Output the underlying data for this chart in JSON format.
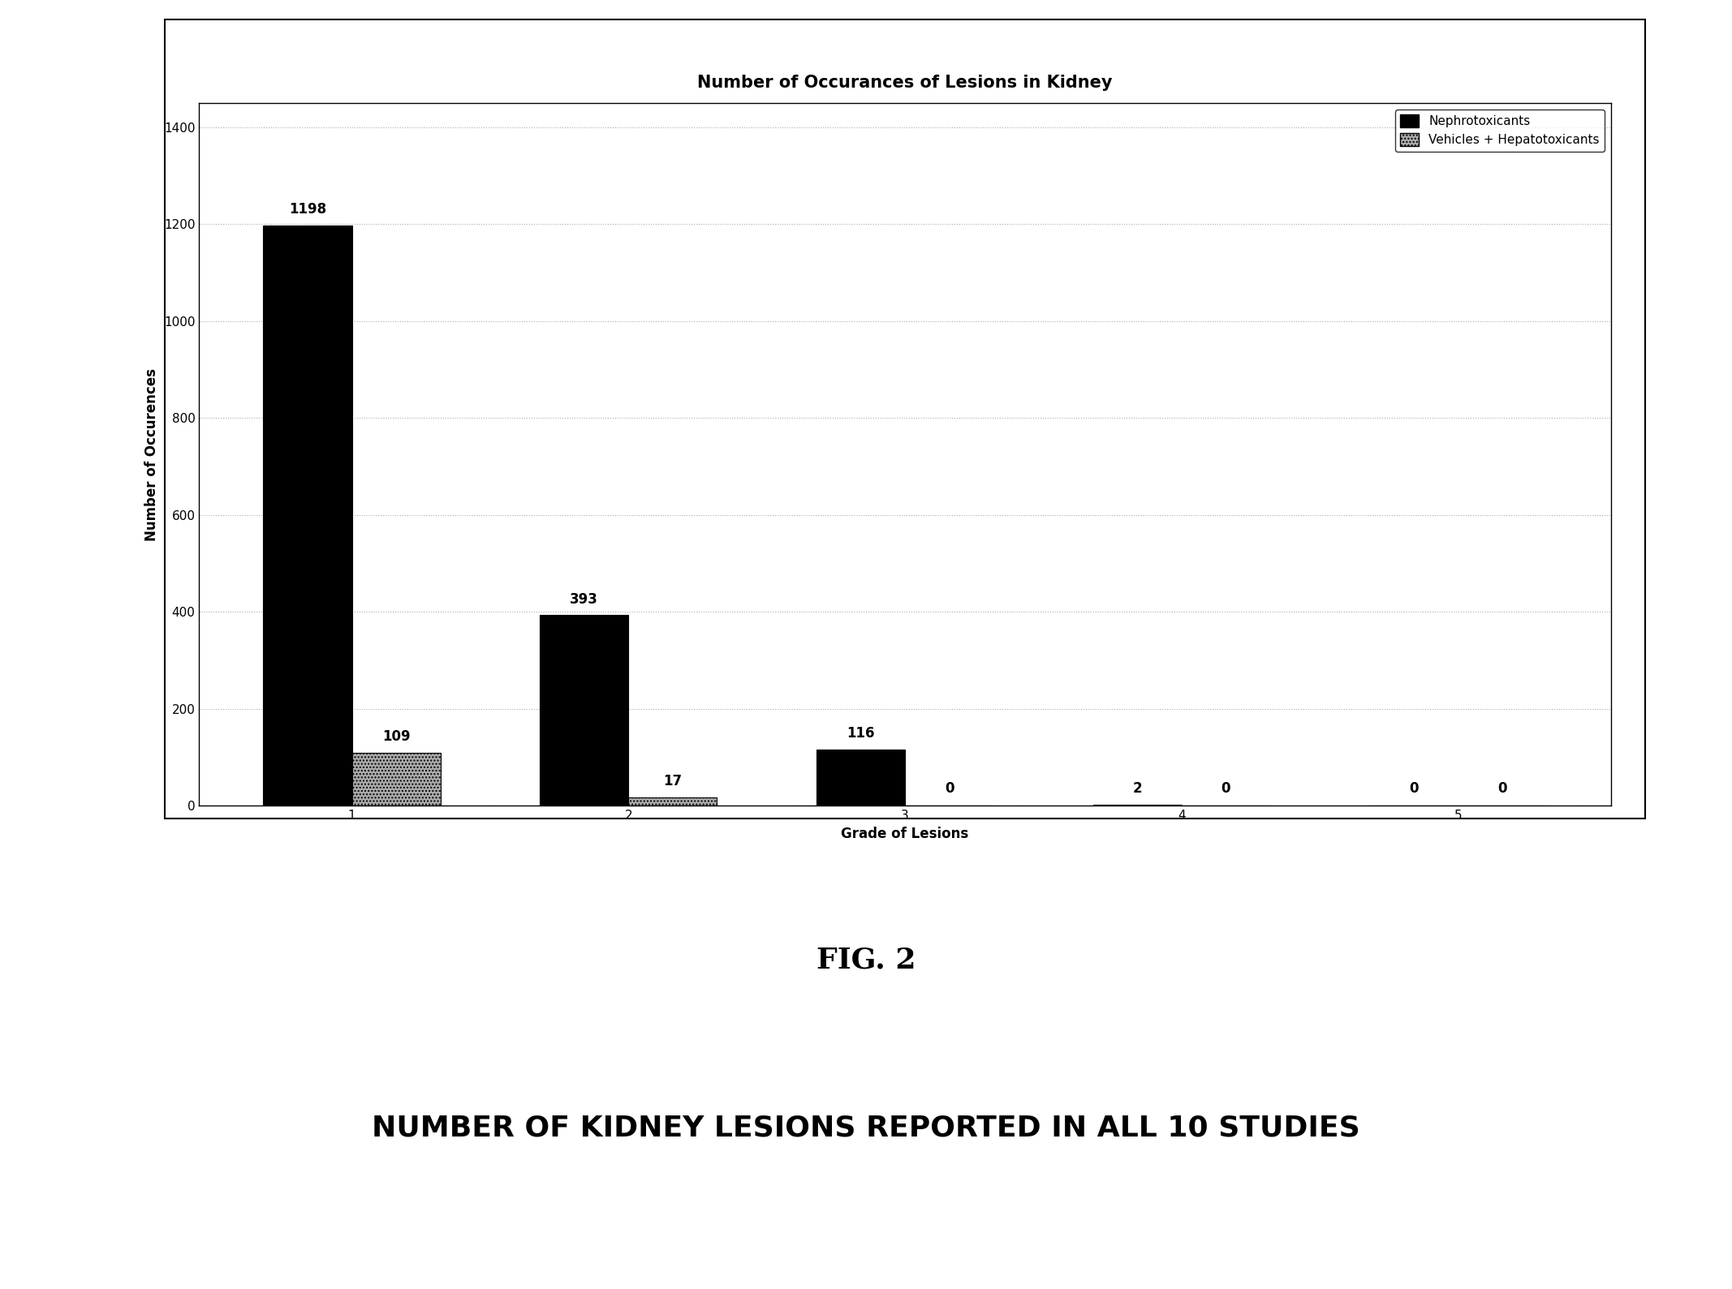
{
  "title": "Number of Occurances of Lesions in Kidney",
  "xlabel": "Grade of Lesions",
  "ylabel": "Number of Occurences",
  "categories": [
    1,
    2,
    3,
    4,
    5
  ],
  "nephrotoxicants": [
    1198,
    393,
    116,
    2,
    0
  ],
  "vehicles_hepatotoxicants": [
    109,
    17,
    0,
    0,
    0
  ],
  "bar_color_nephro": "#000000",
  "bar_color_vehicles": "#aaaaaa",
  "bar_width": 0.32,
  "ylim": [
    0,
    1450
  ],
  "yticks": [
    0,
    200,
    400,
    600,
    800,
    1000,
    1200,
    1400
  ],
  "legend_labels": [
    "Nephrotoxicants",
    "Vehicles + Hepatotoxicants"
  ],
  "fig_caption": "FIG. 2",
  "fig_title": "NUMBER OF KIDNEY LESIONS REPORTED IN ALL 10 STUDIES",
  "background_color": "#ffffff",
  "chart_bg_color": "#ffffff",
  "grid_color": "#aaaaaa",
  "title_fontsize": 15,
  "axis_label_fontsize": 12,
  "tick_fontsize": 11,
  "annotation_fontsize": 12,
  "legend_fontsize": 11,
  "fig_caption_fontsize": 26,
  "fig_title_fontsize": 26
}
